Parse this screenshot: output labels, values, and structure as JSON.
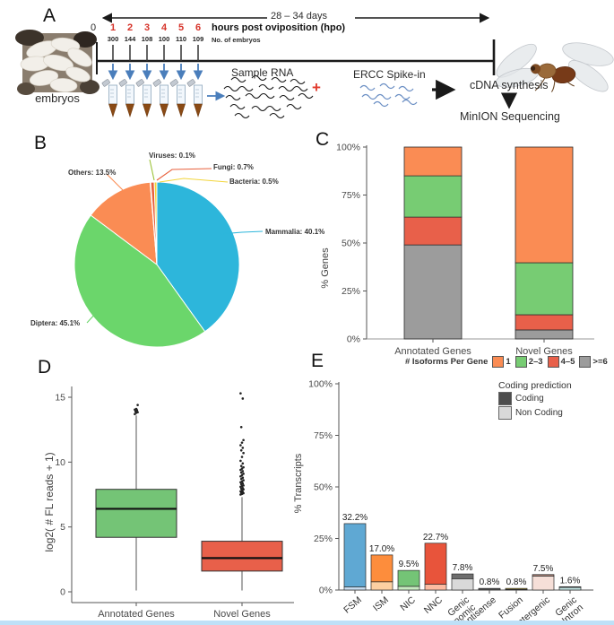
{
  "panels": {
    "a": "A",
    "b": "B",
    "c": "C",
    "d": "D",
    "e": "E"
  },
  "panelA": {
    "days_range": "28 – 34 days",
    "timeline_start": "0",
    "hpo_label": "hours post oviposition (hpo)",
    "embryo_count_label": "No. of embryos",
    "timepoints": [
      {
        "hpo": "1",
        "embryos": "300"
      },
      {
        "hpo": "2",
        "embryos": "144"
      },
      {
        "hpo": "3",
        "embryos": "108"
      },
      {
        "hpo": "4",
        "embryos": "100"
      },
      {
        "hpo": "5",
        "embryos": "110"
      },
      {
        "hpo": "6",
        "embryos": "109"
      }
    ],
    "embryos_caption": "embryos",
    "sample_rna_label": "Sample RNA",
    "plus_sign": "+",
    "ercc_label": "ERCC Spike-in",
    "cdna_label": "cDNA synthesis",
    "minion_label": "MinION Sequencing"
  },
  "chart_data": [
    {
      "id": "taxonomy-pie",
      "type": "pie",
      "slices": [
        {
          "name": "Mammalia",
          "pct": 40.1,
          "color": "#2db6db",
          "display": "Mammalia: 40.1%"
        },
        {
          "name": "Diptera",
          "pct": 45.1,
          "color": "#6bd66b",
          "display": "Diptera: 45.1%"
        },
        {
          "name": "Others",
          "pct": 13.5,
          "color": "#fa8c54",
          "display": "Others: 13.5%"
        },
        {
          "name": "Viruses",
          "pct": 0.1,
          "color": "#9dc33b",
          "display": "Viruses: 0.1%"
        },
        {
          "name": "Fungi",
          "pct": 0.7,
          "color": "#e8603c",
          "display": "Fungi: 0.7%"
        },
        {
          "name": "Bacteria",
          "pct": 0.5,
          "color": "#f2d53c",
          "display": "Bacteria: 0.5%"
        }
      ],
      "start_angle_deg": 0,
      "direction": "clockwise"
    },
    {
      "id": "isoforms-per-gene",
      "type": "bar",
      "stacked": true,
      "ylabel": "% Genes",
      "yticks": [
        {
          "v": 0,
          "label": "0%"
        },
        {
          "v": 25,
          "label": "25%"
        },
        {
          "v": 50,
          "label": "50%"
        },
        {
          "v": 75,
          "label": "75%"
        },
        {
          "v": 100,
          "label": "100%"
        }
      ],
      "categories": [
        "Annotated Genes",
        "Novel Genes"
      ],
      "legend_title": "# Isoforms Per Gene",
      "series": [
        {
          "name": "1",
          "color": "#fa8c54",
          "values": [
            15.0,
            60.3
          ]
        },
        {
          "name": "2–3",
          "color": "#77cc73",
          "values": [
            21.5,
            27.1
          ]
        },
        {
          "name": "4–5",
          "color": "#e8604a",
          "values": [
            14.5,
            7.9
          ]
        },
        {
          "name": ">=6",
          "color": "#9c9c9c",
          "values": [
            49.0,
            4.7
          ]
        }
      ],
      "ylim": [
        0,
        100
      ]
    },
    {
      "id": "fl-reads-boxplot",
      "type": "box",
      "ylabel": "log2( # FL reads + 1)",
      "yticks": [
        {
          "v": 0,
          "label": "0"
        },
        {
          "v": 5,
          "label": "5"
        },
        {
          "v": 10,
          "label": "10"
        },
        {
          "v": 15,
          "label": "15"
        }
      ],
      "categories": [
        "Annotated Genes",
        "Novel Genes"
      ],
      "boxes": [
        {
          "category": "Annotated Genes",
          "color": "#74c476",
          "min": 0.1,
          "q1": 4.2,
          "median": 6.4,
          "q3": 7.9,
          "whisker_high": 13.6,
          "outliers": [
            13.7,
            13.8,
            13.85,
            13.9,
            14.0,
            14.05,
            14.1,
            14.4
          ]
        },
        {
          "category": "Novel Genes",
          "color": "#e8604a",
          "min": 0.1,
          "q1": 1.6,
          "median": 2.6,
          "q3": 3.9,
          "whisker_high": 7.3,
          "outliers": [
            7.5,
            7.55,
            7.6,
            7.65,
            7.7,
            7.75,
            7.8,
            7.9,
            7.95,
            8.0,
            8.1,
            8.15,
            8.2,
            8.3,
            8.35,
            8.45,
            8.5,
            8.6,
            8.7,
            8.8,
            8.9,
            9.0,
            9.1,
            9.2,
            9.3,
            9.4,
            9.5,
            9.6,
            9.7,
            9.9,
            10.1,
            10.4,
            10.7,
            10.9,
            11.1,
            11.3,
            11.5,
            11.7,
            12.7,
            14.9,
            15.3
          ]
        }
      ],
      "ylim": [
        0,
        15.8
      ]
    },
    {
      "id": "transcript-classification",
      "type": "bar",
      "stacked": true,
      "ylabel": "% Transcripts",
      "yticks": [
        {
          "v": 0,
          "label": "0%"
        },
        {
          "v": 25,
          "label": "25%"
        },
        {
          "v": 50,
          "label": "50%"
        },
        {
          "v": 75,
          "label": "75%"
        },
        {
          "v": 100,
          "label": "100%"
        }
      ],
      "categories": [
        "FSM",
        "ISM",
        "NIC",
        "NNC",
        "Genic\nGenomic",
        "Antisense",
        "Fusion",
        "Intergenic",
        "Genic\nIntron"
      ],
      "totals": [
        32.2,
        17.0,
        9.5,
        22.7,
        7.8,
        0.8,
        0.8,
        7.5,
        1.6
      ],
      "value_labels": [
        "32.2%",
        "17.0%",
        "9.5%",
        "22.7%",
        "7.8%",
        "0.8%",
        "0.8%",
        "7.5%",
        "1.6%"
      ],
      "non_coding": [
        1.5,
        4.0,
        1.8,
        2.8,
        5.5,
        0.4,
        0.3,
        6.8,
        1.3
      ],
      "coding": [
        30.7,
        13.0,
        7.7,
        19.9,
        2.3,
        0.4,
        0.5,
        0.7,
        0.3
      ],
      "colors_coding": [
        "#5fa8d3",
        "#fd8d3c",
        "#74c476",
        "#e8543b",
        "#6e6e6e",
        "#8a8a8a",
        "#b3a23b",
        "#b08378",
        "#4e8e8e"
      ],
      "colors_non_coding": [
        "#c6dbef",
        "#fdd0a2",
        "#c7e9c0",
        "#fcbba1",
        "#d9d9d9",
        "#c9c9c9",
        "#e4dca0",
        "#f6dfd8",
        "#bfe0de"
      ],
      "legend_title": "Coding prediction",
      "legend": [
        {
          "label": "Coding",
          "color": "#4d4d4d"
        },
        {
          "label": "Non Coding",
          "color": "#d9d9d9"
        }
      ],
      "ylim": [
        0,
        100
      ]
    }
  ]
}
